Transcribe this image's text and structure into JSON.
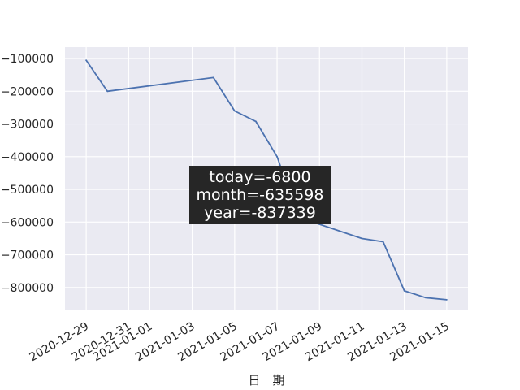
{
  "chart_data": {
    "type": "line",
    "title": "",
    "xlabel": "日　期",
    "ylabel": "",
    "x_ticks": [
      "2020-12-29",
      "2020-12-31",
      "2021-01-01",
      "2021-01-03",
      "2021-01-05",
      "2021-01-07",
      "2021-01-09",
      "2021-01-11",
      "2021-01-13",
      "2021-01-15"
    ],
    "y_ticks": [
      -100000,
      -200000,
      -300000,
      -400000,
      -500000,
      -600000,
      -700000,
      -800000
    ],
    "y_tick_labels": [
      "−100000",
      "−200000",
      "−300000",
      "−400000",
      "−500000",
      "−600000",
      "−700000",
      "−800000"
    ],
    "xlim": [
      "2020-12-28",
      "2021-01-16"
    ],
    "ylim": [
      -870000,
      -65000
    ],
    "grid": true,
    "series": [
      {
        "color": "#4c72b0",
        "points": [
          {
            "x": "2020-12-29",
            "y": -105000
          },
          {
            "x": "2020-12-30",
            "y": -200000
          },
          {
            "x": "2021-01-04",
            "y": -158000
          },
          {
            "x": "2021-01-05",
            "y": -260000
          },
          {
            "x": "2021-01-06",
            "y": -292000
          },
          {
            "x": "2021-01-07",
            "y": -400000
          },
          {
            "x": "2021-01-08",
            "y": -585000
          },
          {
            "x": "2021-01-11",
            "y": -650000
          },
          {
            "x": "2021-01-12",
            "y": -660000
          },
          {
            "x": "2021-01-13",
            "y": -810000
          },
          {
            "x": "2021-01-14",
            "y": -831000
          },
          {
            "x": "2021-01-15",
            "y": -837339
          }
        ]
      }
    ],
    "annotation": {
      "lines": [
        "today=-6800",
        "month=-635598",
        "year=-837339"
      ]
    }
  },
  "colors": {
    "plot_background": "#eaeaf2",
    "grid": "#ffffff",
    "line": "#4c72b0",
    "annotation_background": "#262626",
    "text": "#262626"
  }
}
